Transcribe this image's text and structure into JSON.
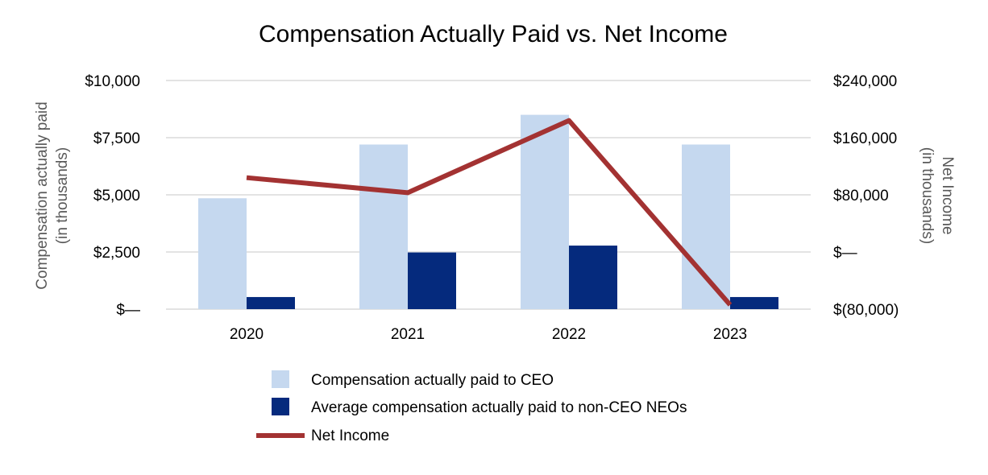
{
  "chart_data": {
    "type": "bar",
    "title": "Compensation Actually Paid vs. Net Income",
    "categories": [
      "2020",
      "2021",
      "2022",
      "2023"
    ],
    "ylabel_left": [
      "Compensation actually paid",
      "(in thousands)"
    ],
    "ylabel_right": [
      "Net Income",
      "(in thousands)"
    ],
    "ylim_left": [
      0,
      10000
    ],
    "ylim_right": [
      -80000,
      240000
    ],
    "yticks_left": [
      0,
      2500,
      5000,
      7500,
      10000
    ],
    "ytick_labels_left": [
      "$—",
      "$2,500",
      "$5,000",
      "$7,500",
      "$10,000"
    ],
    "yticks_right": [
      -80000,
      0,
      80000,
      160000,
      240000
    ],
    "ytick_labels_right": [
      "$(80,000)",
      "$—",
      "$80,000",
      "$160,000",
      "$240,000"
    ],
    "grid": true,
    "legend_position": "bottom",
    "series": [
      {
        "name": "Compensation actually paid to CEO",
        "type": "bar",
        "axis": "left",
        "color": "#c5d8ef",
        "values": [
          4850,
          7200,
          8500,
          7200
        ]
      },
      {
        "name": "Average compensation actually paid to non-CEO NEOs",
        "type": "bar",
        "axis": "left",
        "color": "#052a7d",
        "values": [
          530,
          2480,
          2780,
          530
        ]
      },
      {
        "name": "Net Income",
        "type": "line",
        "axis": "right",
        "color": "#a33232",
        "values": [
          104000,
          83000,
          184000,
          -74000
        ]
      }
    ]
  }
}
